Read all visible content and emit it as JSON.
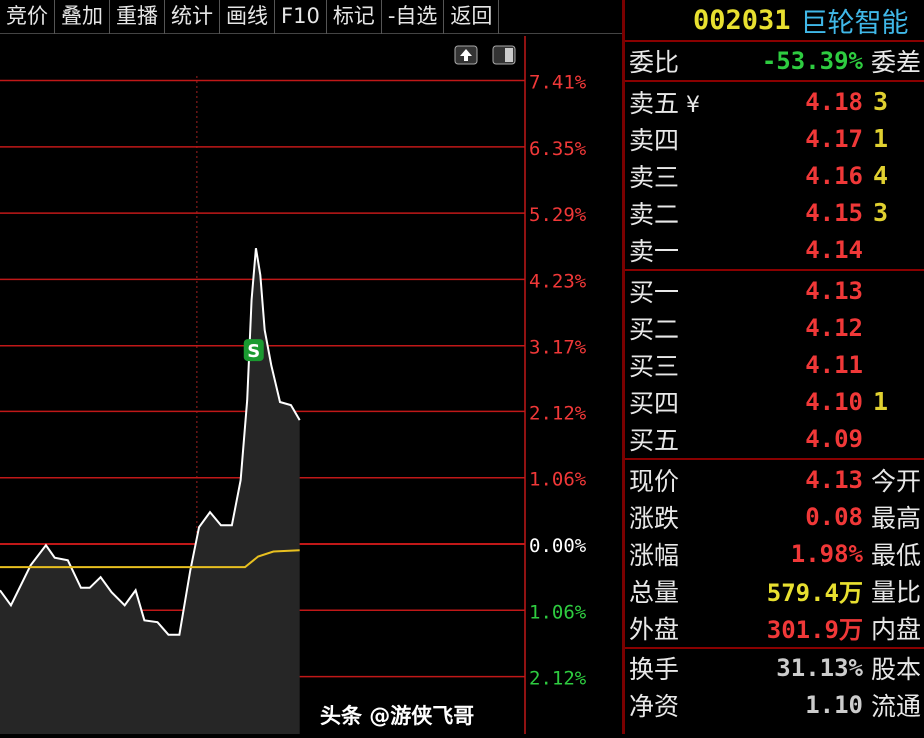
{
  "toolbar": [
    "竞价",
    "叠加",
    "重播",
    "统计",
    "画线",
    "F10",
    "标记",
    "-自选",
    "返回"
  ],
  "stock": {
    "code": "002031",
    "name": "巨轮智能"
  },
  "weibi": {
    "label": "委比",
    "value": "-53.39%",
    "extra": "委差"
  },
  "sell": [
    {
      "label": "卖五",
      "icon": "yen-icon",
      "price": "4.18",
      "vol": "3"
    },
    {
      "label": "卖四",
      "price": "4.17",
      "vol": "1"
    },
    {
      "label": "卖三",
      "price": "4.16",
      "vol": "4"
    },
    {
      "label": "卖二",
      "price": "4.15",
      "vol": "3"
    },
    {
      "label": "卖一",
      "price": "4.14",
      "vol": ""
    }
  ],
  "buy": [
    {
      "label": "买一",
      "price": "4.13",
      "vol": ""
    },
    {
      "label": "买二",
      "price": "4.12",
      "vol": ""
    },
    {
      "label": "买三",
      "price": "4.11",
      "vol": ""
    },
    {
      "label": "买四",
      "price": "4.10",
      "vol": "1"
    },
    {
      "label": "买五",
      "price": "4.09",
      "vol": ""
    }
  ],
  "quote": [
    {
      "label": "现价",
      "value": "4.13",
      "color": "red",
      "extra": "今开"
    },
    {
      "label": "涨跌",
      "value": "0.08",
      "color": "red",
      "extra": "最高"
    },
    {
      "label": "涨幅",
      "value": "1.98%",
      "color": "red",
      "extra": "最低"
    },
    {
      "label": "总量",
      "value": "579.4万",
      "color": "yellow",
      "extra": "量比"
    },
    {
      "label": "外盘",
      "value": "301.9万",
      "color": "red",
      "extra": "内盘"
    }
  ],
  "stats": [
    {
      "label": "换手",
      "value": "31.13%",
      "extra": "股本"
    },
    {
      "label": "净资",
      "value": "1.10",
      "extra": "流通"
    }
  ],
  "watermark": "头条 @游侠飞哥",
  "chart_data": {
    "type": "line",
    "yticks": [
      {
        "label": "7.41%",
        "v": 7.41,
        "color": "#f03838"
      },
      {
        "label": "6.35%",
        "v": 6.35,
        "color": "#f03838"
      },
      {
        "label": "5.29%",
        "v": 5.29,
        "color": "#f03838"
      },
      {
        "label": "4.23%",
        "v": 4.23,
        "color": "#f03838"
      },
      {
        "label": "3.17%",
        "v": 3.17,
        "color": "#f03838"
      },
      {
        "label": "2.12%",
        "v": 2.12,
        "color": "#f03838"
      },
      {
        "label": "1.06%",
        "v": 1.06,
        "color": "#f03838"
      },
      {
        "label": "0.00%",
        "v": 0,
        "color": "#ffffff"
      },
      {
        "label": "1.06%",
        "v": -1.06,
        "color": "#2ecc40"
      },
      {
        "label": "2.12%",
        "v": -2.12,
        "color": "#2ecc40"
      }
    ],
    "ylim": [
      -2.12,
      7.41
    ],
    "xlim": [
      0,
      240
    ],
    "price": {
      "x": [
        0,
        5,
        14,
        21,
        25,
        31,
        37,
        41,
        46,
        51,
        57,
        62,
        66,
        72,
        77,
        82,
        87,
        91,
        96,
        101,
        106,
        110,
        113,
        115,
        117,
        119,
        121,
        124,
        128,
        133,
        137
      ],
      "y": [
        -0.74,
        -0.98,
        -0.34,
        -0.02,
        -0.22,
        -0.26,
        -0.7,
        -0.7,
        -0.53,
        -0.77,
        -0.98,
        -0.74,
        -1.22,
        -1.25,
        -1.45,
        -1.45,
        -0.42,
        0.27,
        0.51,
        0.3,
        0.3,
        1.02,
        2.3,
        3.9,
        4.73,
        4.3,
        3.42,
        2.86,
        2.27,
        2.22,
        1.98
      ]
    },
    "avg": {
      "x": [
        0,
        112,
        118,
        125,
        137
      ],
      "y": [
        -0.37,
        -0.37,
        -0.2,
        -0.12,
        -0.1
      ]
    },
    "marker": {
      "label": "S",
      "x": 116,
      "y": 3.1
    }
  }
}
